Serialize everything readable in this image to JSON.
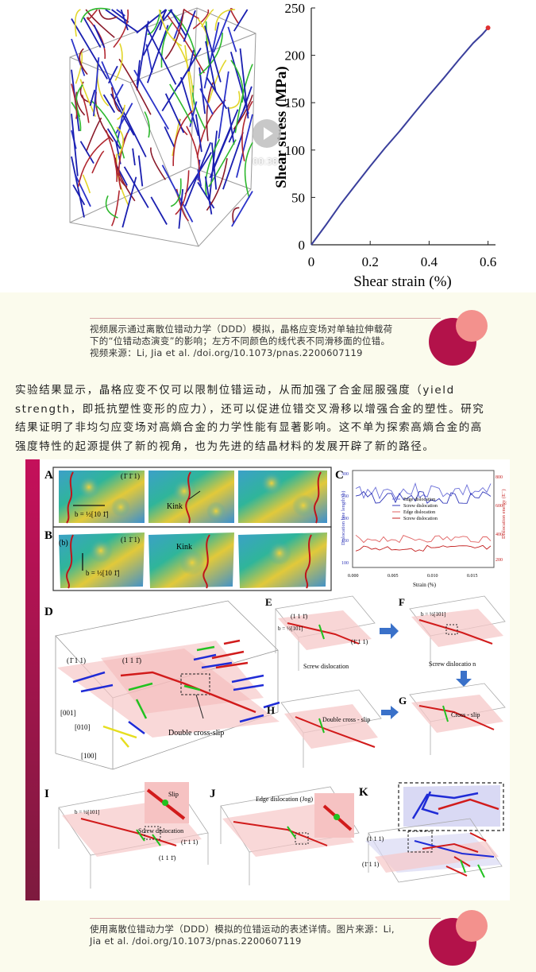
{
  "video": {
    "timecode": "00:38",
    "chart": {
      "type": "line",
      "ylabel": "Shear stress (MPa)",
      "xlabel": "Shear strain (%)",
      "yticks": [
        "0",
        "50",
        "100",
        "150",
        "200",
        "250"
      ],
      "xticks": [
        "0",
        "0.2",
        "0.4",
        "0.6"
      ]
    }
  },
  "chart_data": {
    "type": "line",
    "title": "",
    "xlabel": "Shear strain (%)",
    "ylabel": "Shear stress (MPa)",
    "xlim": [
      0,
      0.62
    ],
    "ylim": [
      0,
      250
    ],
    "series": [
      {
        "x": [
          0,
          0.05,
          0.1,
          0.15,
          0.2,
          0.25,
          0.3,
          0.35,
          0.4,
          0.45,
          0.5,
          0.55,
          0.58,
          0.6
        ],
        "y": [
          0,
          21,
          43,
          63,
          83,
          102,
          120,
          139,
          158,
          176,
          195,
          213,
          222,
          229
        ]
      }
    ]
  },
  "caption1": {
    "lines": [
      "视频展示通过离散位错动力学（DDD）模拟，晶格应变场对单轴拉伸载荷",
      "下的“位错动态演变”的影响；左方不同颜色的线代表不同滑移面的位错。",
      "视频来源：Li, Jia et al. /doi.org/10.1073/pnas.2200607119"
    ]
  },
  "paragraph": {
    "lines": [
      "实验结果显示，晶格应变不仅可以限制位错运动，从而加强了合金屈服强度（yield",
      "strength，即抵抗塑性变形的应力），还可以促进位错交叉滑移以增强合金的塑性。研究",
      "结果证明了非均匀应变场对高熵合金的力学性能有显著影响。这不单为探索高熵合金的高",
      "强度特性的起源提供了新的视角，也为先进的结晶材料的发展开辟了新的路径。"
    ]
  },
  "figure": {
    "panel_labels": [
      "A",
      "B",
      "C",
      "D",
      "E",
      "F",
      "G",
      "H",
      "I",
      "J",
      "K"
    ],
    "a_plane": "(1̄ 1̄ 1)",
    "a_burgers": "b = ½[10 1̄]",
    "a_kink": "Kink",
    "b_sub": "(b)",
    "b_plane": "(1 1̄ 1)",
    "b_burgers": "b = ½[10 1̄]",
    "b_kink": "Kink",
    "c_ylabel_left": "Dislocation line length (b)",
    "c_ylabel_right": "Dislocation energy (E⁻)",
    "c_xlabel": "Strain (%)",
    "c_xticks": [
      "0.000",
      "0.005",
      "0.010",
      "0.015"
    ],
    "c_yticks_left": [
      "100",
      "150",
      "200",
      "250",
      "300"
    ],
    "c_yticks_right": [
      "200",
      "400",
      "600",
      "800"
    ],
    "c_legend": [
      "Edge dislocation",
      "Screw dislocation",
      "Edge dislocation",
      "Screw dislocation"
    ],
    "d_plane1": "(1̄ 1 1)",
    "d_plane2": "(1 1 1̄)",
    "d_axis_001": "[001]",
    "d_axis_010": "[010]",
    "d_axis_100": "[100]",
    "d_note": "Double  cross-slip",
    "e_plane1": "(1 1 1̄)",
    "e_plane2": "(1̄ 1 1)",
    "e_burgers": "b = ½[101]",
    "e_note": "Screw dislocation",
    "f_burgers": "b = ½[101]",
    "f_note": "Screw dislocatio n",
    "g_note": "Cross - slip",
    "h_note": "Double cross - slip",
    "i_burgers": "b = ½[101]",
    "i_slip": "Slip",
    "i_note": "Screw dislocation",
    "i_plane1": "(1̄ 1 1)",
    "i_plane2": "(1 1 1̄)",
    "j_note": "Edge dislocation (Jog)",
    "k_plane1": "(1 1 1)",
    "k_plane2": "(1̄ 1 1)"
  },
  "caption2": {
    "lines": [
      "使用离散位错动力学（DDD）模拟的位错运动的表述详情。图片来源：Li,",
      "Jia et al. /doi.org/10.1073/pnas.2200607119"
    ]
  },
  "colors": {
    "accent": "#b3124a",
    "accent_light": "#f3918d",
    "curve": "#3a3f9c"
  }
}
